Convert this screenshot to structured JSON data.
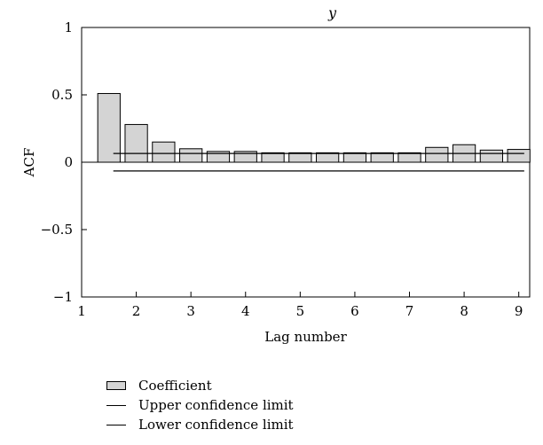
{
  "chart_data": {
    "type": "bar",
    "title": "y",
    "xlabel": "Lag number",
    "ylabel": "ACF",
    "xlim": [
      1,
      9.2
    ],
    "ylim": [
      -1,
      1
    ],
    "xticks": [
      1,
      2,
      3,
      4,
      5,
      6,
      7,
      8,
      9
    ],
    "yticks": [
      1,
      0.5,
      0,
      -0.5,
      -1
    ],
    "ytick_labels": [
      "1",
      "0.5",
      "0",
      "−0.5",
      "−1"
    ],
    "grid": false,
    "bar_color": "#d4d4d4",
    "bars": {
      "x": [
        1.5,
        2.0,
        2.5,
        3.0,
        3.5,
        4.0,
        4.5,
        5.0,
        5.5,
        6.0,
        6.5,
        7.0,
        7.5,
        8.0,
        8.5,
        9.0
      ],
      "values": [
        0.51,
        0.28,
        0.15,
        0.1,
        0.08,
        0.08,
        0.07,
        0.07,
        0.07,
        0.07,
        0.07,
        0.07,
        0.11,
        0.13,
        0.09,
        0.095
      ]
    },
    "upper_confidence_limit": {
      "x": [
        1.58,
        9.1
      ],
      "value": 0.065
    },
    "lower_confidence_limit": {
      "x": [
        1.58,
        9.1
      ],
      "value": -0.065
    },
    "legend": {
      "position": "bottom-left",
      "entries": [
        {
          "label": "Coefficient",
          "marker": "bar"
        },
        {
          "label": "Upper confidence limit",
          "marker": "line"
        },
        {
          "label": "Lower confidence limit",
          "marker": "line"
        }
      ]
    }
  }
}
